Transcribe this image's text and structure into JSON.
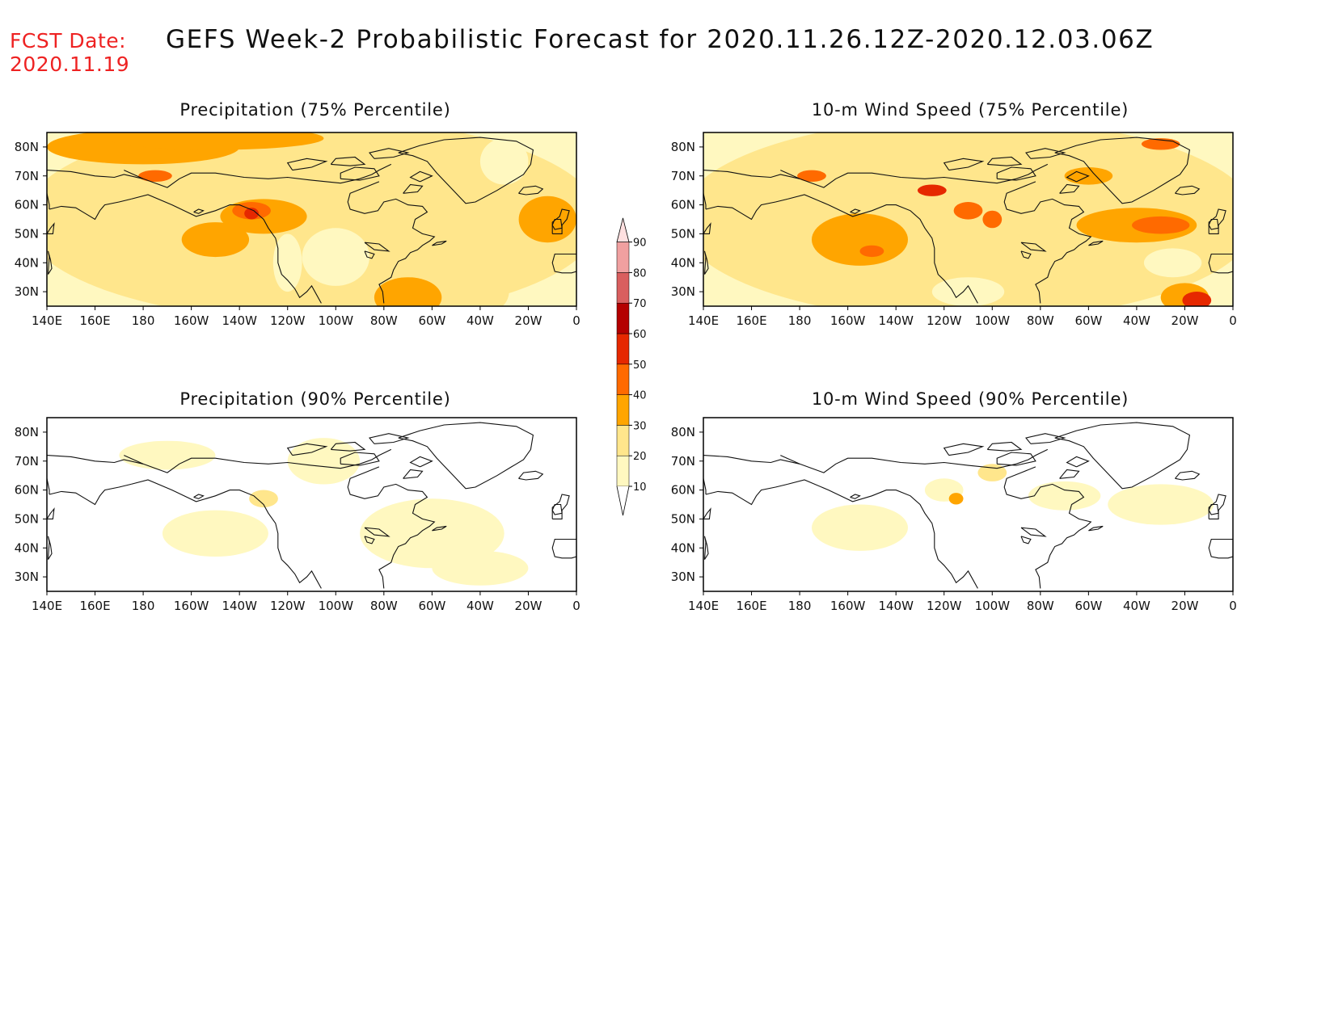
{
  "header": {
    "fcst_label": "FCST Date:",
    "fcst_date": "2020.11.19",
    "title": "GEFS Week-2 Probabilistic Forecast for 2020.11.26.12Z-2020.12.03.06Z"
  },
  "panels": [
    {
      "id": "precip-75",
      "title": "Precipitation (75% Percentile)",
      "level": "high"
    },
    {
      "id": "wind-75",
      "title": "10-m Wind Speed (75% Percentile)",
      "level": "high"
    },
    {
      "id": "precip-90",
      "title": "Precipitation (90% Percentile)",
      "level": "low"
    },
    {
      "id": "wind-90",
      "title": "10-m Wind Speed (90% Percentile)",
      "level": "low"
    }
  ],
  "axes": {
    "lat_labels": [
      "80N",
      "70N",
      "60N",
      "50N",
      "40N",
      "30N"
    ],
    "lon_labels": [
      "140E",
      "160E",
      "180",
      "160W",
      "140W",
      "120W",
      "100W",
      "80W",
      "60W",
      "40W",
      "20W",
      "0"
    ]
  },
  "colorbar": {
    "labels": [
      "10",
      "20",
      "30",
      "40",
      "50",
      "60",
      "70",
      "80",
      "90"
    ],
    "colors": [
      "#fff8c0",
      "#ffe68c",
      "#ffa500",
      "#ff6a00",
      "#e62800",
      "#b40000",
      "#d95f5f",
      "#f0a0a0",
      "#ffe0e0"
    ]
  }
}
